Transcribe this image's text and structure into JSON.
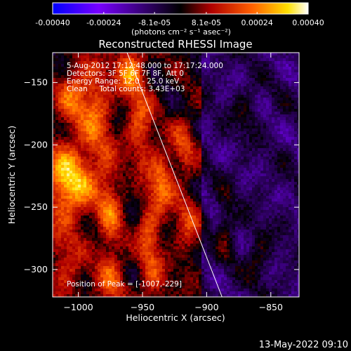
{
  "colorbar": {
    "ticks": [
      "-0.00040",
      "-0.00024",
      "-8.1e-05",
      "8.1e-05",
      "0.00024",
      "0.00040"
    ],
    "tick_values": [
      -0.0004,
      -0.00024,
      -8.1e-05,
      8.1e-05,
      0.00024,
      0.0004
    ],
    "range": [
      -0.0004,
      0.0004
    ],
    "unit_label": "(photons cm⁻² s⁻¹ asec⁻²)",
    "colormap": [
      "#0000ff",
      "#7800ff",
      "#000000",
      "#b00000",
      "#ff6000",
      "#ffe000",
      "#ffffff"
    ]
  },
  "chart_data": {
    "type": "heatmap",
    "title": "Reconstructed RHESSI Image",
    "xlabel": "Heliocentric X (arcsec)",
    "ylabel": "Heliocentric Y (arcsec)",
    "xlim": [
      -1020,
      -828
    ],
    "ylim": [
      -322,
      -126
    ],
    "x_ticks": [
      -1000,
      -950,
      -900,
      -850
    ],
    "y_ticks": [
      -150,
      -200,
      -250,
      -300
    ],
    "annotations": [
      "5-Aug-2012 17:12:48.000 to 17:17:24.000",
      "Detectors: 3F 5F 6F 7F 8F, Att 0",
      "Energy Range: 12.0 - 25.0 keV",
      "Clean     Total counts: 3.43E+03"
    ],
    "peak_label": "Position of Peak = [-1007,-229]",
    "peak": [
      -1007,
      -229
    ],
    "limb_line": [
      [
        -962,
        -126
      ],
      [
        -888,
        -322
      ]
    ],
    "grid": false
  },
  "footer": {
    "timestamp": "13-May-2022 09:10"
  }
}
